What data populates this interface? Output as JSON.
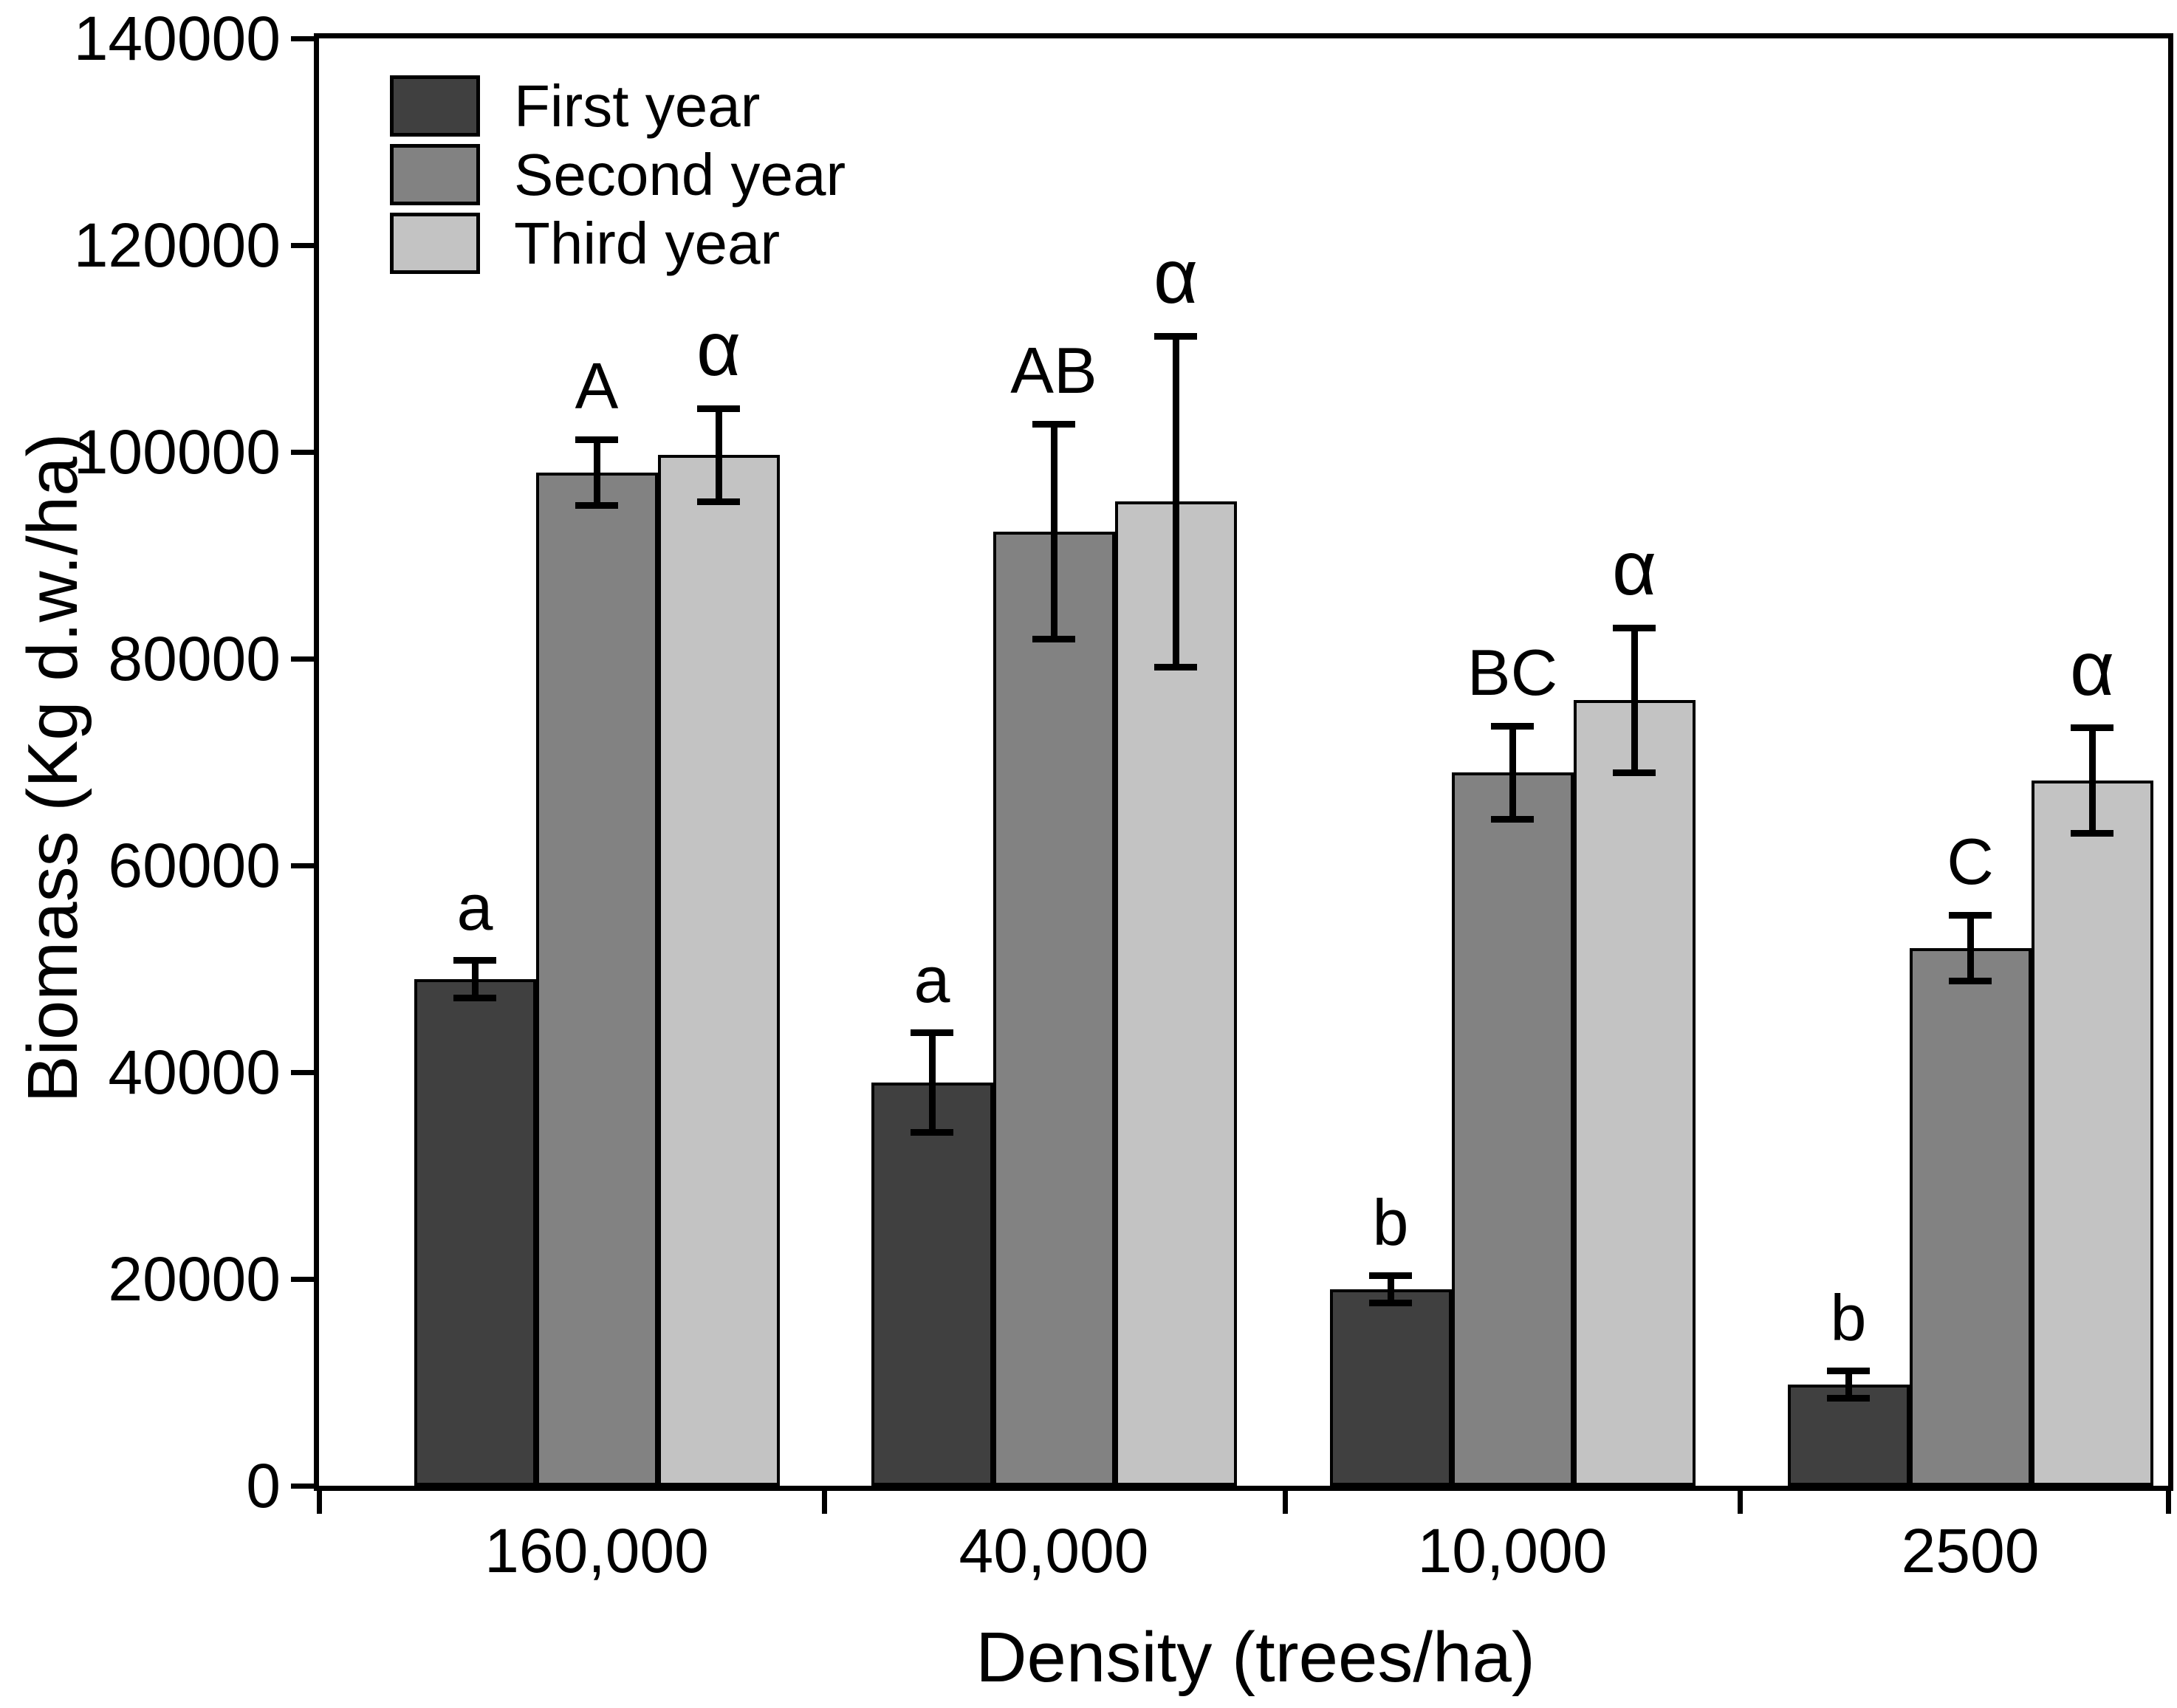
{
  "chart_data": {
    "type": "bar",
    "title": "",
    "xlabel": "Density (trees/ha)",
    "ylabel": "Biomass (Kg d.w./ha)",
    "categories": [
      "160,000",
      "40,000",
      "10,000",
      "2500"
    ],
    "series": [
      {
        "name": "First year",
        "color": "#404040",
        "values": [
          49000,
          39000,
          19000,
          9800
        ],
        "errors": [
          1800,
          4800,
          1300,
          1300
        ],
        "letters": [
          "a",
          "a",
          "b",
          "b"
        ]
      },
      {
        "name": "Second year",
        "color": "#828282",
        "values": [
          98000,
          92300,
          69000,
          52000
        ],
        "errors": [
          3200,
          10400,
          4500,
          3200
        ],
        "letters": [
          "A",
          "AB",
          "BC",
          "C"
        ]
      },
      {
        "name": "Third year",
        "color": "#c3c3c3",
        "values": [
          99700,
          95200,
          76000,
          68200
        ],
        "errors": [
          4500,
          16000,
          7000,
          5100
        ],
        "letters": [
          "α",
          "α",
          "α",
          "α"
        ]
      }
    ],
    "ylim": [
      0,
      140000
    ],
    "ytick_step": 20000,
    "yticks": [
      "0",
      "20000",
      "40000",
      "60000",
      "80000",
      "100000",
      "120000",
      "140000"
    ],
    "legend_position": "top-left",
    "grid": false,
    "error_bars": true,
    "bar_edge_color": "#000000",
    "axis_color": "#000000"
  }
}
